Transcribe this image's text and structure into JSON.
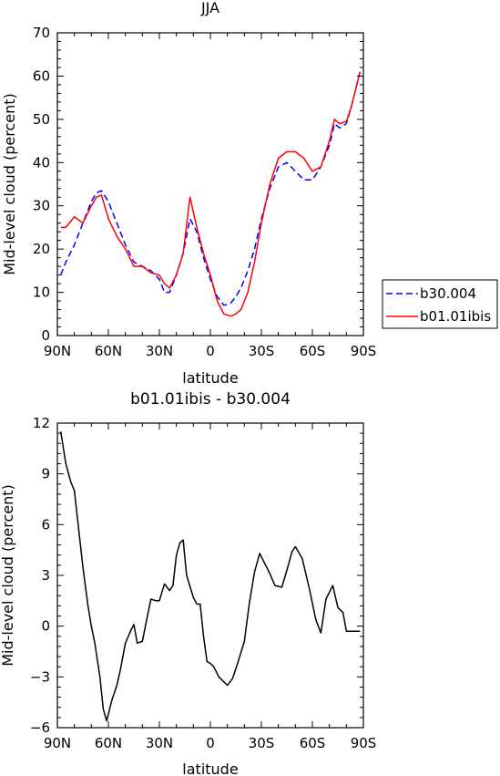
{
  "chart_data": [
    {
      "type": "line",
      "title": "JJA",
      "xlabel": "latitude",
      "ylabel": "Mid-level cloud (percent)",
      "xlim": [
        90,
        -90
      ],
      "ylim": [
        0,
        70
      ],
      "x_tick_values": [
        90,
        60,
        30,
        0,
        -30,
        -60,
        -90
      ],
      "x_tick_labels": [
        "90N",
        "60N",
        "30N",
        "0",
        "30S",
        "60S",
        "90S"
      ],
      "y_tick_values": [
        0,
        10,
        20,
        30,
        40,
        50,
        60,
        70
      ],
      "y_tick_labels": [
        "0",
        "10",
        "20",
        "30",
        "40",
        "50",
        "60",
        "70"
      ],
      "legend_position": "right",
      "x": [
        88,
        85,
        80,
        75,
        70,
        67,
        64,
        60,
        55,
        50,
        45,
        40,
        35,
        30,
        27,
        24,
        20,
        16,
        12,
        8,
        4,
        0,
        -4,
        -8,
        -12,
        -15,
        -18,
        -22,
        -26,
        -30,
        -35,
        -40,
        -45,
        -50,
        -55,
        -60,
        -65,
        -70,
        -73,
        -76,
        -80,
        -83,
        -88
      ],
      "series": [
        {
          "name": "b30.004",
          "color": "#0000ff",
          "dash": "dashed",
          "values": [
            14,
            17,
            21,
            26,
            31,
            33,
            33.5,
            31,
            26,
            21,
            17,
            16,
            15,
            13,
            10,
            10,
            14,
            19,
            27,
            24,
            18,
            13,
            9,
            7,
            7.5,
            9,
            11,
            15,
            20,
            27,
            34,
            39,
            40,
            38,
            36,
            36,
            39,
            44,
            49,
            48,
            49,
            53,
            61
          ]
        },
        {
          "name": "b01.01ibis",
          "color": "#ff0000",
          "dash": "solid",
          "values": [
            25,
            25,
            27.5,
            26,
            30,
            32,
            32.5,
            27,
            23,
            20,
            16,
            16,
            14.5,
            14,
            12,
            11,
            14,
            19,
            32,
            25,
            19,
            14,
            8,
            5,
            4.5,
            5,
            6,
            10,
            17,
            26,
            35,
            41,
            42.5,
            42.5,
            41,
            38,
            39,
            45,
            50,
            49,
            49.5,
            53,
            61
          ]
        }
      ]
    },
    {
      "type": "line",
      "title": "b01.01ibis - b30.004",
      "xlabel": "latitude",
      "ylabel": "Mid-level cloud (percent)",
      "xlim": [
        90,
        -90
      ],
      "ylim": [
        -6,
        12
      ],
      "x_tick_values": [
        90,
        60,
        30,
        0,
        -30,
        -60,
        -90
      ],
      "x_tick_labels": [
        "90N",
        "60N",
        "30N",
        "0",
        "30S",
        "60S",
        "90S"
      ],
      "y_tick_values": [
        -6,
        -3,
        0,
        3,
        6,
        9,
        12
      ],
      "y_tick_labels": [
        "−6",
        "−3",
        "0",
        "3",
        "6",
        "9",
        "12"
      ],
      "x": [
        88,
        85,
        82,
        80,
        78,
        75,
        72,
        70,
        68,
        65,
        63,
        61,
        58,
        55,
        53,
        50,
        47,
        45,
        43,
        40,
        37,
        35,
        32,
        30,
        27,
        24,
        22,
        20,
        18,
        16,
        14,
        10,
        8,
        6,
        4,
        2,
        0,
        -2,
        -5,
        -10,
        -13,
        -16,
        -20,
        -23,
        -26,
        -29,
        -31,
        -33,
        -35,
        -38,
        -42,
        -45,
        -48,
        -50,
        -54,
        -58,
        -62,
        -65,
        -68,
        -72,
        -75,
        -78,
        -80,
        -83,
        -85,
        -88
      ],
      "series": [
        {
          "name": "",
          "color": "#000000",
          "dash": "solid",
          "values": [
            11.5,
            9.6,
            8.5,
            8.0,
            6.2,
            3.5,
            1.2,
            0.0,
            -1.0,
            -3.0,
            -4.9,
            -5.6,
            -4.4,
            -3.5,
            -2.6,
            -1.0,
            -0.3,
            0.1,
            -1.0,
            -0.9,
            0.6,
            1.6,
            1.5,
            1.5,
            2.5,
            2.1,
            2.4,
            4.2,
            4.9,
            5.1,
            3.0,
            1.7,
            1.3,
            1.3,
            -0.6,
            -2.1,
            -2.2,
            -2.4,
            -3.0,
            -3.5,
            -3.1,
            -2.2,
            -0.9,
            1.4,
            3.2,
            4.3,
            3.9,
            3.5,
            3.1,
            2.4,
            2.3,
            3.3,
            4.4,
            4.7,
            4.0,
            2.3,
            0.4,
            -0.4,
            1.6,
            2.4,
            1.1,
            0.8,
            -0.3,
            -0.3,
            -0.3,
            -0.3
          ]
        }
      ]
    }
  ]
}
